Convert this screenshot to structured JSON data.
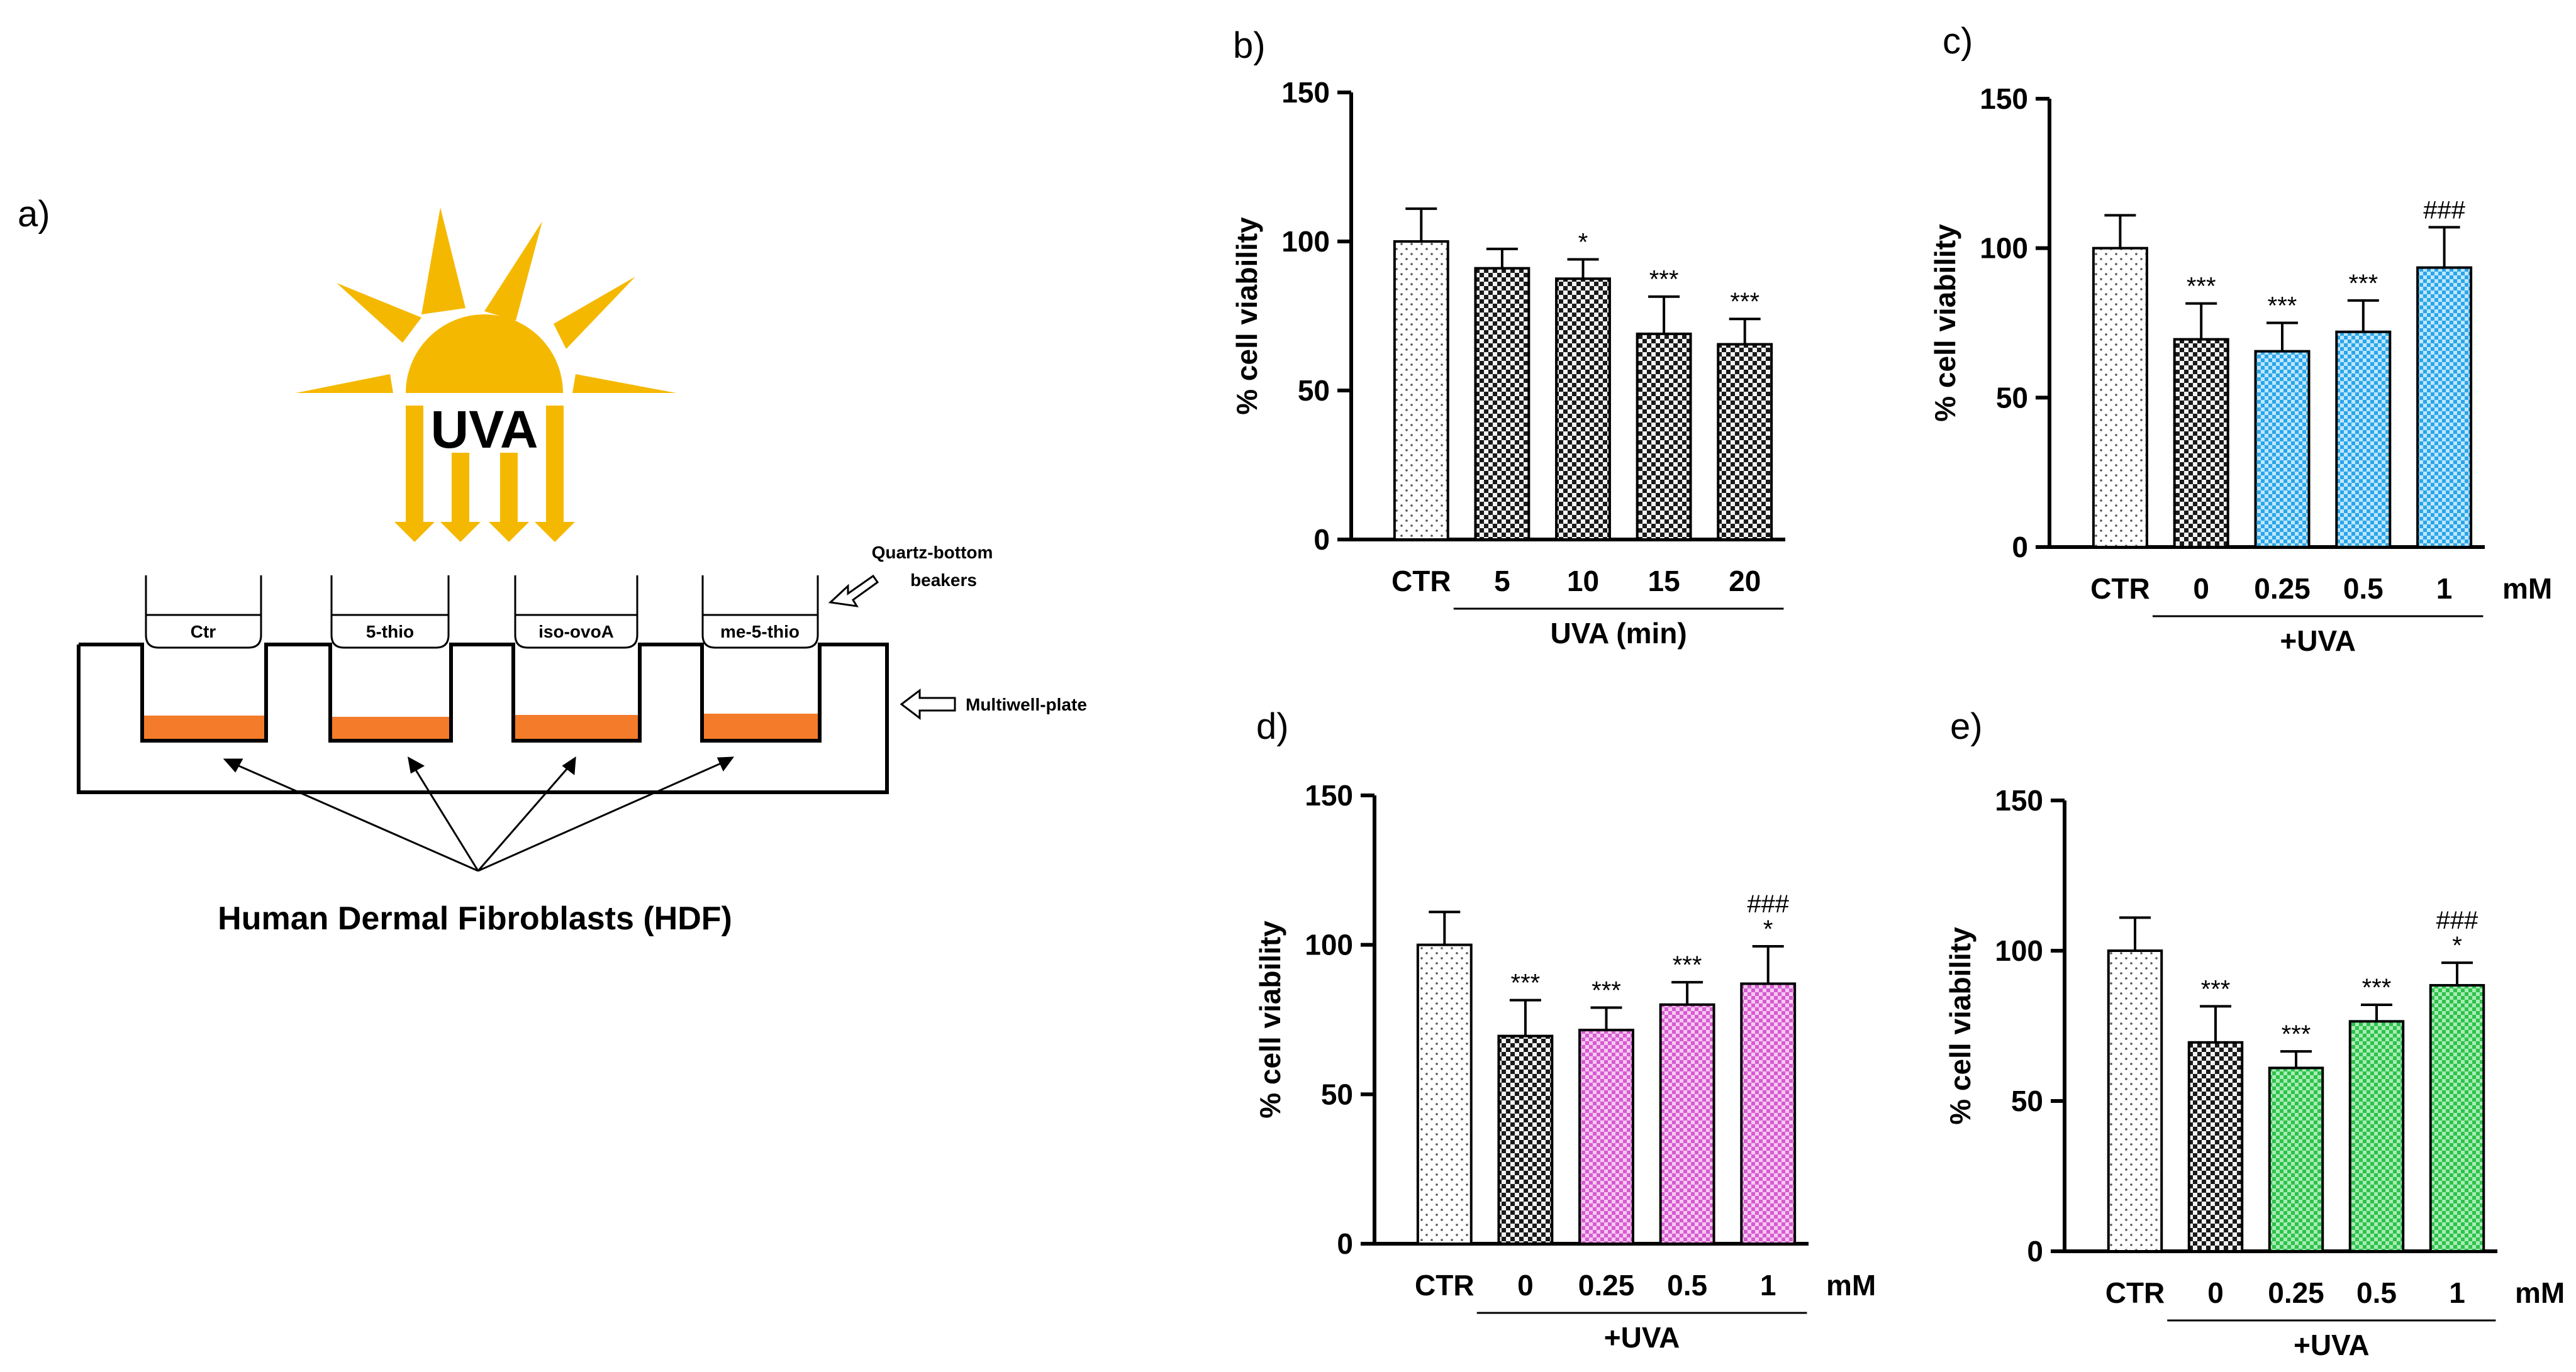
{
  "schematic": {
    "label": "a)",
    "sun_text": "UVA",
    "beakers": [
      "Ctr",
      "5-thio",
      "iso-ovoA",
      "me-5-thio"
    ],
    "beakers_label_1": "Quartz-bottom",
    "beakers_label_2": "beakers",
    "plate_label": "Multiwell-plate",
    "cells_label": "Human Dermal Fibroblasts (HDF)",
    "colors": {
      "sun": "#f5b800",
      "medium": "#f47b2a"
    }
  },
  "chart_data": [
    {
      "panel": "b)",
      "type": "bar",
      "ylabel": "% cell viability",
      "ylim": [
        0,
        150
      ],
      "yticks": [
        "0",
        "50",
        "100",
        "150"
      ],
      "categories": [
        "CTR",
        "5",
        "10",
        "15",
        "20"
      ],
      "values": [
        100,
        91,
        87.5,
        69,
        65.5
      ],
      "errors": [
        11,
        6.5,
        6.5,
        12.5,
        8.5
      ],
      "patterns": [
        "dots",
        "checker",
        "checker",
        "checker",
        "checker"
      ],
      "significance": [
        [],
        [],
        [
          "*"
        ],
        [
          "***"
        ],
        [
          "***"
        ]
      ],
      "group_label": "UVA (min)",
      "unit": ""
    },
    {
      "panel": "c)",
      "type": "bar",
      "ylabel": "% cell viability",
      "ylim": [
        0,
        150
      ],
      "yticks": [
        "0",
        "50",
        "100",
        "150"
      ],
      "categories": [
        "CTR",
        "0",
        "0.25",
        "0.5",
        "1"
      ],
      "values": [
        100,
        69.5,
        65.5,
        72,
        93.5
      ],
      "errors": [
        11,
        12,
        9.5,
        10.5,
        13.5
      ],
      "patterns": [
        "dots",
        "checker",
        "blue",
        "blue",
        "blue"
      ],
      "significance": [
        [],
        [
          "***"
        ],
        [
          "***"
        ],
        [
          "***"
        ],
        [
          "###"
        ]
      ],
      "group_label": "+UVA",
      "unit": "mM"
    },
    {
      "panel": "d)",
      "type": "bar",
      "ylabel": "% cell viability",
      "ylim": [
        0,
        150
      ],
      "yticks": [
        "0",
        "50",
        "100",
        "150"
      ],
      "categories": [
        "CTR",
        "0",
        "0.25",
        "0.5",
        "1"
      ],
      "values": [
        100,
        69.5,
        71.5,
        80,
        87
      ],
      "errors": [
        11,
        12,
        7.5,
        7.5,
        12.5
      ],
      "patterns": [
        "dots",
        "checker",
        "magenta",
        "magenta",
        "magenta"
      ],
      "significance": [
        [],
        [
          "***"
        ],
        [
          "***"
        ],
        [
          "***"
        ],
        [
          "###",
          "*"
        ]
      ],
      "group_label": "+UVA",
      "unit": "mM"
    },
    {
      "panel": "e)",
      "type": "bar",
      "ylabel": "% cell viability",
      "ylim": [
        0,
        150
      ],
      "yticks": [
        "0",
        "50",
        "100",
        "150"
      ],
      "categories": [
        "CTR",
        "0",
        "0.25",
        "0.5",
        "1"
      ],
      "values": [
        100,
        69.5,
        61,
        76.5,
        88.5
      ],
      "errors": [
        11,
        12,
        5.5,
        5.5,
        7.5
      ],
      "patterns": [
        "dots",
        "checker",
        "green",
        "green",
        "green"
      ],
      "significance": [
        [],
        [
          "***"
        ],
        [
          "***"
        ],
        [
          "***"
        ],
        [
          "###",
          "*"
        ]
      ],
      "group_label": "+UVA",
      "unit": "mM"
    }
  ]
}
